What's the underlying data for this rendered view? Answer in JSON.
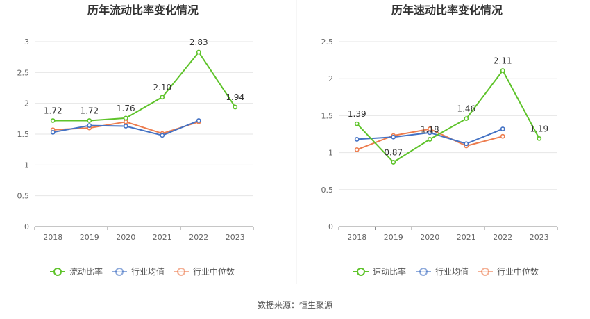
{
  "colors": {
    "series1": "#5ec32a",
    "series2": "#4472c4",
    "series3": "#ed7d4f",
    "grid": "#e6e6e6",
    "axis": "#8c8c8c",
    "divider": "#eeeeee"
  },
  "source": "数据来源：恒生聚源",
  "chart_data": [
    {
      "type": "line",
      "title": "历年流动比率变化情况",
      "x": [
        "2018",
        "2019",
        "2020",
        "2021",
        "2022",
        "2023"
      ],
      "ylim": [
        0,
        3
      ],
      "yticks": [
        "0",
        "0.5",
        "1",
        "1.5",
        "2",
        "2.5",
        "3"
      ],
      "grid": true,
      "legend_position": "bottom",
      "series": [
        {
          "name": "流动比率",
          "values": [
            1.72,
            1.72,
            1.76,
            2.1,
            2.83,
            1.94
          ],
          "labels": [
            "1.72",
            "1.72",
            "1.76",
            "2.10",
            "2.83",
            "1.94"
          ]
        },
        {
          "name": "行业均值",
          "values": [
            1.53,
            1.64,
            1.63,
            1.48,
            1.72,
            null
          ]
        },
        {
          "name": "行业中位数",
          "values": [
            1.57,
            1.6,
            1.7,
            1.51,
            1.7,
            null
          ]
        }
      ]
    },
    {
      "type": "line",
      "title": "历年速动比率变化情况",
      "x": [
        "2018",
        "2019",
        "2020",
        "2021",
        "2022",
        "2023"
      ],
      "ylim": [
        0,
        2.5
      ],
      "yticks": [
        "0",
        "0.5",
        "1",
        "1.5",
        "2",
        "2.5"
      ],
      "grid": true,
      "legend_position": "bottom",
      "series": [
        {
          "name": "速动比率",
          "values": [
            1.39,
            0.87,
            1.18,
            1.46,
            2.11,
            1.19
          ],
          "labels": [
            "1.39",
            "0.87",
            "1.18",
            "1.46",
            "2.11",
            "1.19"
          ]
        },
        {
          "name": "行业均值",
          "values": [
            1.18,
            1.21,
            1.27,
            1.12,
            1.32,
            null
          ]
        },
        {
          "name": "行业中位数",
          "values": [
            1.04,
            1.23,
            1.32,
            1.09,
            1.22,
            null
          ]
        }
      ]
    }
  ]
}
